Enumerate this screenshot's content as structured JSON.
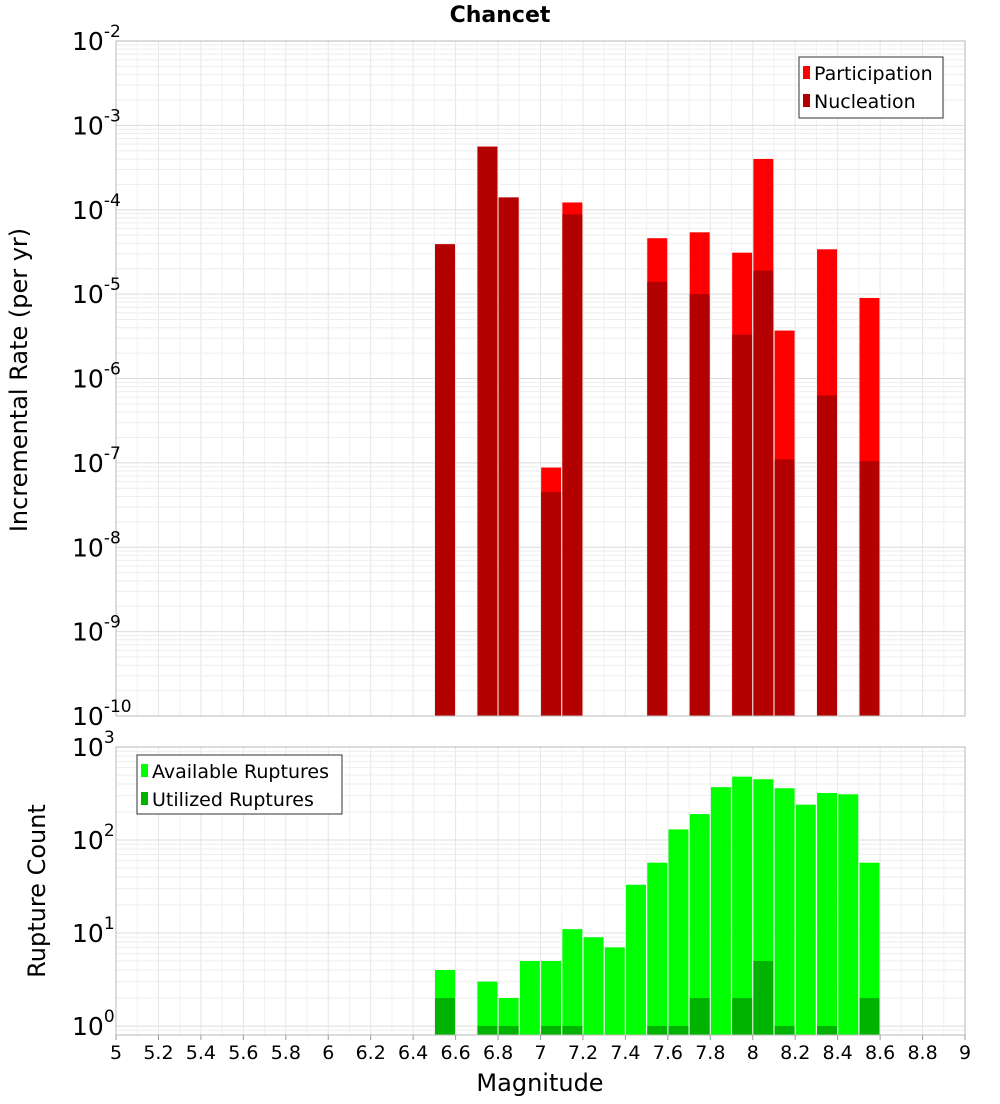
{
  "chart_data": [
    {
      "type": "bar",
      "title": "Chancet",
      "xlabel": "",
      "ylabel": "Incremental Rate (per yr)",
      "yscale": "log",
      "ylim": [
        1e-10,
        0.01
      ],
      "y_tick_labels": [
        {
          "base": "10",
          "exp": "-10"
        },
        {
          "base": "10",
          "exp": "-9"
        },
        {
          "base": "10",
          "exp": "-8"
        },
        {
          "base": "10",
          "exp": "-7"
        },
        {
          "base": "10",
          "exp": "-6"
        },
        {
          "base": "10",
          "exp": "-5"
        },
        {
          "base": "10",
          "exp": "-4"
        },
        {
          "base": "10",
          "exp": "-3"
        },
        {
          "base": "10",
          "exp": "-2"
        }
      ],
      "xlim": [
        5,
        9
      ],
      "grid": true,
      "legend_position": "top-right",
      "series": [
        {
          "name": "Participation",
          "color": "#ff0000",
          "x": [
            6.55,
            6.75,
            6.85,
            7.05,
            7.15,
            7.55,
            7.75,
            7.95,
            8.05,
            8.15,
            8.35,
            8.55
          ],
          "values": [
            3.9e-05,
            0.00056,
            0.00014,
            8.8e-08,
            0.000122,
            4.6e-05,
            5.4e-05,
            3.1e-05,
            0.0004,
            3.7e-06,
            3.4e-05,
            9e-06
          ]
        },
        {
          "name": "Nucleation",
          "color": "#b30000",
          "x": [
            6.55,
            6.75,
            6.85,
            7.05,
            7.15,
            7.55,
            7.75,
            7.95,
            8.05,
            8.15,
            8.35,
            8.55
          ],
          "values": [
            3.9e-05,
            0.00056,
            0.00014,
            4.5e-08,
            8.8e-05,
            1.4e-05,
            1e-05,
            3.3e-06,
            1.9e-05,
            1.1e-07,
            6.3e-07,
            1.05e-07
          ]
        }
      ]
    },
    {
      "type": "bar",
      "title": "",
      "xlabel": "Magnitude",
      "ylabel": "Rupture Count",
      "yscale": "log",
      "ylim": [
        0.8,
        1000
      ],
      "y_tick_labels": [
        {
          "base": "10",
          "exp": "0",
          "value": 1
        },
        {
          "base": "10",
          "exp": "1",
          "value": 10
        },
        {
          "base": "10",
          "exp": "2",
          "value": 100
        },
        {
          "base": "10",
          "exp": "3",
          "value": 1000
        }
      ],
      "xlim": [
        5,
        9
      ],
      "x_ticks": [
        "5",
        "5.2",
        "5.4",
        "5.6",
        "5.8",
        "6",
        "6.2",
        "6.4",
        "6.6",
        "6.8",
        "7",
        "7.2",
        "7.4",
        "7.6",
        "7.8",
        "8",
        "8.2",
        "8.4",
        "8.6",
        "8.8",
        "9"
      ],
      "grid": true,
      "legend_position": "top-left",
      "series": [
        {
          "name": "Available Ruptures",
          "color": "#00ff00",
          "x": [
            6.55,
            6.75,
            6.85,
            6.95,
            7.05,
            7.15,
            7.25,
            7.35,
            7.45,
            7.55,
            7.65,
            7.75,
            7.85,
            7.95,
            8.05,
            8.15,
            8.25,
            8.35,
            8.45,
            8.55
          ],
          "values": [
            4,
            3,
            2,
            5,
            5,
            11,
            9,
            7,
            33,
            57,
            130,
            190,
            370,
            480,
            450,
            360,
            240,
            320,
            310,
            57
          ]
        },
        {
          "name": "Utilized Ruptures",
          "color": "#00b300",
          "x": [
            6.55,
            6.75,
            6.85,
            7.05,
            7.15,
            7.55,
            7.65,
            7.75,
            7.95,
            8.05,
            8.15,
            8.35,
            8.55
          ],
          "values": [
            2,
            1,
            1,
            1,
            1,
            1,
            1,
            2,
            2,
            5,
            1,
            1,
            2
          ]
        }
      ]
    }
  ]
}
